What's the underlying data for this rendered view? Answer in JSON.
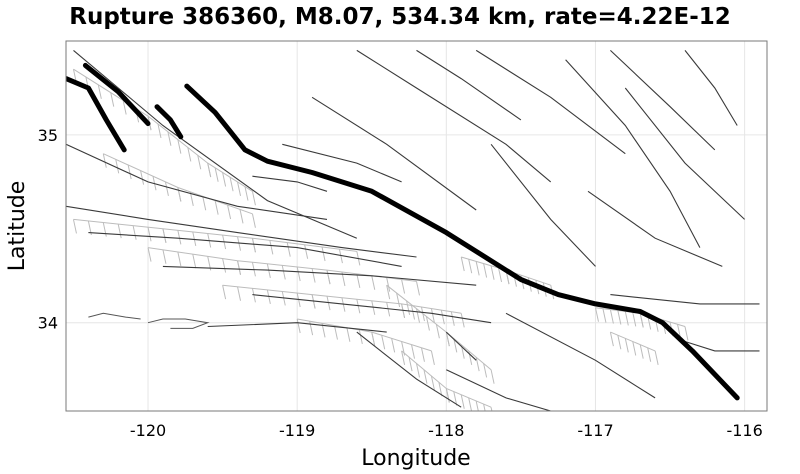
{
  "chart_data": {
    "type": "line",
    "title": "Rupture 386360, M8.07, 534.34 km, rate=4.22E-12",
    "xlabel": "Longitude",
    "ylabel": "Latitude",
    "xlim": [
      -120.55,
      -115.85
    ],
    "ylim": [
      33.53,
      35.5
    ],
    "xticks": [
      -120,
      -119,
      -118,
      -117,
      -116
    ],
    "xtick_labels": [
      "-120",
      "-119",
      "-118",
      "-117",
      "-116"
    ],
    "yticks": [
      34,
      35
    ],
    "ytick_labels": [
      "34",
      "35"
    ],
    "grid": true,
    "colors": {
      "rupture": "#000000",
      "faults": "#3a3a3a",
      "fault_surfaces": "#bcbcbc"
    },
    "series": [
      {
        "name": "rupture-main",
        "role": "rupture",
        "points": [
          [
            -119.74,
            35.26
          ],
          [
            -119.55,
            35.12
          ],
          [
            -119.35,
            34.92
          ],
          [
            -119.2,
            34.86
          ],
          [
            -118.9,
            34.8
          ],
          [
            -118.5,
            34.7
          ],
          [
            -118.0,
            34.48
          ],
          [
            -117.5,
            34.23
          ],
          [
            -117.25,
            34.15
          ],
          [
            -117.0,
            34.1
          ],
          [
            -116.7,
            34.06
          ],
          [
            -116.55,
            34.0
          ],
          [
            -116.35,
            33.85
          ],
          [
            -116.05,
            33.6
          ]
        ]
      },
      {
        "name": "rupture-nw-1",
        "role": "rupture",
        "points": [
          [
            -120.42,
            35.37
          ],
          [
            -120.2,
            35.23
          ],
          [
            -120.0,
            35.06
          ]
        ]
      },
      {
        "name": "rupture-nw-2",
        "role": "rupture",
        "points": [
          [
            -120.55,
            35.3
          ],
          [
            -120.4,
            35.25
          ],
          [
            -120.28,
            35.08
          ],
          [
            -120.16,
            34.92
          ]
        ]
      },
      {
        "name": "rupture-nw-3",
        "role": "rupture",
        "points": [
          [
            -119.94,
            35.15
          ],
          [
            -119.85,
            35.08
          ],
          [
            -119.78,
            34.99
          ]
        ]
      },
      {
        "name": "fault-1",
        "role": "fault",
        "points": [
          [
            -120.5,
            35.45
          ],
          [
            -119.9,
            35.05
          ],
          [
            -119.2,
            34.65
          ],
          [
            -118.6,
            34.45
          ]
        ]
      },
      {
        "name": "fault-2",
        "role": "fault",
        "points": [
          [
            -120.55,
            34.95
          ],
          [
            -120.0,
            34.75
          ],
          [
            -119.4,
            34.62
          ],
          [
            -118.8,
            34.55
          ]
        ]
      },
      {
        "name": "fault-3",
        "role": "fault",
        "points": [
          [
            -120.55,
            34.62
          ],
          [
            -120.0,
            34.55
          ],
          [
            -119.4,
            34.48
          ],
          [
            -118.7,
            34.4
          ],
          [
            -118.2,
            34.35
          ]
        ]
      },
      {
        "name": "fault-4",
        "role": "fault",
        "points": [
          [
            -120.4,
            34.48
          ],
          [
            -119.8,
            34.45
          ],
          [
            -119.0,
            34.4
          ],
          [
            -118.3,
            34.3
          ]
        ]
      },
      {
        "name": "fault-5",
        "role": "fault",
        "points": [
          [
            -119.9,
            34.3
          ],
          [
            -119.2,
            34.28
          ],
          [
            -118.5,
            34.25
          ],
          [
            -117.8,
            34.2
          ]
        ]
      },
      {
        "name": "fault-6",
        "role": "fault",
        "points": [
          [
            -119.3,
            34.15
          ],
          [
            -118.7,
            34.1
          ],
          [
            -118.1,
            34.05
          ],
          [
            -117.7,
            34.0
          ]
        ]
      },
      {
        "name": "fault-7",
        "role": "fault",
        "points": [
          [
            -119.6,
            33.98
          ],
          [
            -119.0,
            34.0
          ],
          [
            -118.4,
            33.95
          ]
        ]
      },
      {
        "name": "fault-8",
        "role": "fault",
        "points": [
          [
            -119.1,
            34.95
          ],
          [
            -118.6,
            34.85
          ],
          [
            -118.3,
            34.75
          ]
        ]
      },
      {
        "name": "fault-9",
        "role": "fault",
        "points": [
          [
            -118.9,
            35.2
          ],
          [
            -118.4,
            34.95
          ],
          [
            -117.8,
            34.6
          ]
        ]
      },
      {
        "name": "fault-10",
        "role": "fault",
        "points": [
          [
            -118.6,
            35.45
          ],
          [
            -118.2,
            35.25
          ],
          [
            -117.6,
            34.95
          ],
          [
            -117.3,
            34.75
          ]
        ]
      },
      {
        "name": "fault-11",
        "role": "fault",
        "points": [
          [
            -118.2,
            35.45
          ],
          [
            -117.9,
            35.3
          ],
          [
            -117.5,
            35.08
          ]
        ]
      },
      {
        "name": "fault-12",
        "role": "fault",
        "points": [
          [
            -117.8,
            35.45
          ],
          [
            -117.3,
            35.2
          ],
          [
            -116.8,
            34.9
          ]
        ]
      },
      {
        "name": "fault-13",
        "role": "fault",
        "points": [
          [
            -117.2,
            35.4
          ],
          [
            -116.8,
            35.05
          ],
          [
            -116.5,
            34.7
          ],
          [
            -116.3,
            34.4
          ]
        ]
      },
      {
        "name": "fault-14",
        "role": "fault",
        "points": [
          [
            -117.7,
            34.95
          ],
          [
            -117.3,
            34.55
          ],
          [
            -117.0,
            34.3
          ]
        ]
      },
      {
        "name": "fault-15",
        "role": "fault",
        "points": [
          [
            -116.8,
            35.25
          ],
          [
            -116.4,
            34.85
          ],
          [
            -116.0,
            34.55
          ]
        ]
      },
      {
        "name": "fault-16",
        "role": "fault",
        "points": [
          [
            -116.4,
            35.45
          ],
          [
            -116.2,
            35.25
          ],
          [
            -116.05,
            35.05
          ]
        ]
      },
      {
        "name": "fault-17",
        "role": "fault",
        "points": [
          [
            -116.9,
            35.45
          ],
          [
            -116.5,
            35.15
          ],
          [
            -116.2,
            34.92
          ]
        ]
      },
      {
        "name": "fault-18",
        "role": "fault",
        "points": [
          [
            -117.05,
            34.7
          ],
          [
            -116.6,
            34.45
          ],
          [
            -116.15,
            34.3
          ]
        ]
      },
      {
        "name": "fault-19",
        "role": "fault",
        "points": [
          [
            -116.9,
            34.15
          ],
          [
            -116.3,
            34.1
          ],
          [
            -115.9,
            34.1
          ]
        ]
      },
      {
        "name": "fault-20",
        "role": "fault",
        "points": [
          [
            -117.6,
            34.05
          ],
          [
            -117.0,
            33.8
          ],
          [
            -116.6,
            33.6
          ]
        ]
      },
      {
        "name": "fault-21",
        "role": "fault",
        "points": [
          [
            -118.0,
            33.75
          ],
          [
            -117.6,
            33.6
          ],
          [
            -117.3,
            33.53
          ]
        ]
      },
      {
        "name": "fault-22",
        "role": "fault",
        "points": [
          [
            -118.6,
            33.95
          ],
          [
            -118.2,
            33.7
          ],
          [
            -117.9,
            33.55
          ]
        ]
      },
      {
        "name": "fault-23",
        "role": "fault",
        "points": [
          [
            -118.0,
            33.95
          ],
          [
            -117.8,
            33.8
          ]
        ]
      },
      {
        "name": "fault-24",
        "role": "fault",
        "points": [
          [
            -116.4,
            33.9
          ],
          [
            -116.2,
            33.85
          ],
          [
            -115.9,
            33.85
          ]
        ]
      },
      {
        "name": "fault-25",
        "role": "fault",
        "points": [
          [
            -119.3,
            34.78
          ],
          [
            -119.0,
            34.75
          ],
          [
            -118.8,
            34.7
          ]
        ]
      },
      {
        "name": "trace-1",
        "role": "fault-surface",
        "points": [
          [
            -120.5,
            35.35
          ],
          [
            -120.0,
            35.1
          ],
          [
            -119.6,
            34.85
          ],
          [
            -119.3,
            34.7
          ]
        ]
      },
      {
        "name": "trace-2",
        "role": "fault-surface",
        "points": [
          [
            -120.3,
            34.9
          ],
          [
            -119.8,
            34.72
          ],
          [
            -119.3,
            34.58
          ]
        ]
      },
      {
        "name": "trace-3",
        "role": "fault-surface",
        "points": [
          [
            -120.5,
            34.55
          ],
          [
            -119.9,
            34.5
          ],
          [
            -119.3,
            34.45
          ],
          [
            -118.6,
            34.38
          ]
        ]
      },
      {
        "name": "trace-4",
        "role": "fault-surface",
        "points": [
          [
            -120.0,
            34.4
          ],
          [
            -119.4,
            34.33
          ],
          [
            -118.8,
            34.28
          ],
          [
            -118.2,
            34.22
          ]
        ]
      },
      {
        "name": "trace-5",
        "role": "fault-surface",
        "points": [
          [
            -119.5,
            34.2
          ],
          [
            -118.9,
            34.15
          ],
          [
            -118.3,
            34.1
          ],
          [
            -117.9,
            34.05
          ]
        ]
      },
      {
        "name": "trace-6",
        "role": "fault-surface",
        "points": [
          [
            -119.0,
            34.02
          ],
          [
            -118.5,
            33.95
          ],
          [
            -118.1,
            33.85
          ]
        ]
      },
      {
        "name": "trace-7",
        "role": "fault-surface",
        "points": [
          [
            -118.4,
            34.2
          ],
          [
            -118.0,
            33.95
          ],
          [
            -117.7,
            33.75
          ]
        ]
      },
      {
        "name": "trace-8",
        "role": "fault-surface",
        "points": [
          [
            -118.3,
            33.85
          ],
          [
            -118.0,
            33.65
          ],
          [
            -117.7,
            33.55
          ]
        ]
      },
      {
        "name": "trace-9",
        "role": "fault-surface",
        "points": [
          [
            -117.9,
            34.35
          ],
          [
            -117.6,
            34.28
          ],
          [
            -117.3,
            34.2
          ]
        ]
      },
      {
        "name": "trace-10",
        "role": "fault-surface",
        "points": [
          [
            -117.0,
            34.08
          ],
          [
            -116.7,
            34.05
          ],
          [
            -116.4,
            33.98
          ]
        ]
      },
      {
        "name": "trace-11",
        "role": "fault-surface",
        "points": [
          [
            -116.9,
            33.95
          ],
          [
            -116.6,
            33.85
          ]
        ]
      },
      {
        "name": "coast-1",
        "role": "coastline",
        "points": [
          [
            -120.4,
            34.03
          ],
          [
            -120.3,
            34.05
          ],
          [
            -120.15,
            34.03
          ],
          [
            -120.05,
            34.02
          ]
        ]
      },
      {
        "name": "coast-2",
        "role": "coastline",
        "points": [
          [
            -120.0,
            34.0
          ],
          [
            -119.9,
            34.02
          ],
          [
            -119.75,
            34.02
          ],
          [
            -119.6,
            34.0
          ],
          [
            -119.7,
            33.97
          ],
          [
            -119.85,
            33.97
          ]
        ]
      }
    ]
  }
}
